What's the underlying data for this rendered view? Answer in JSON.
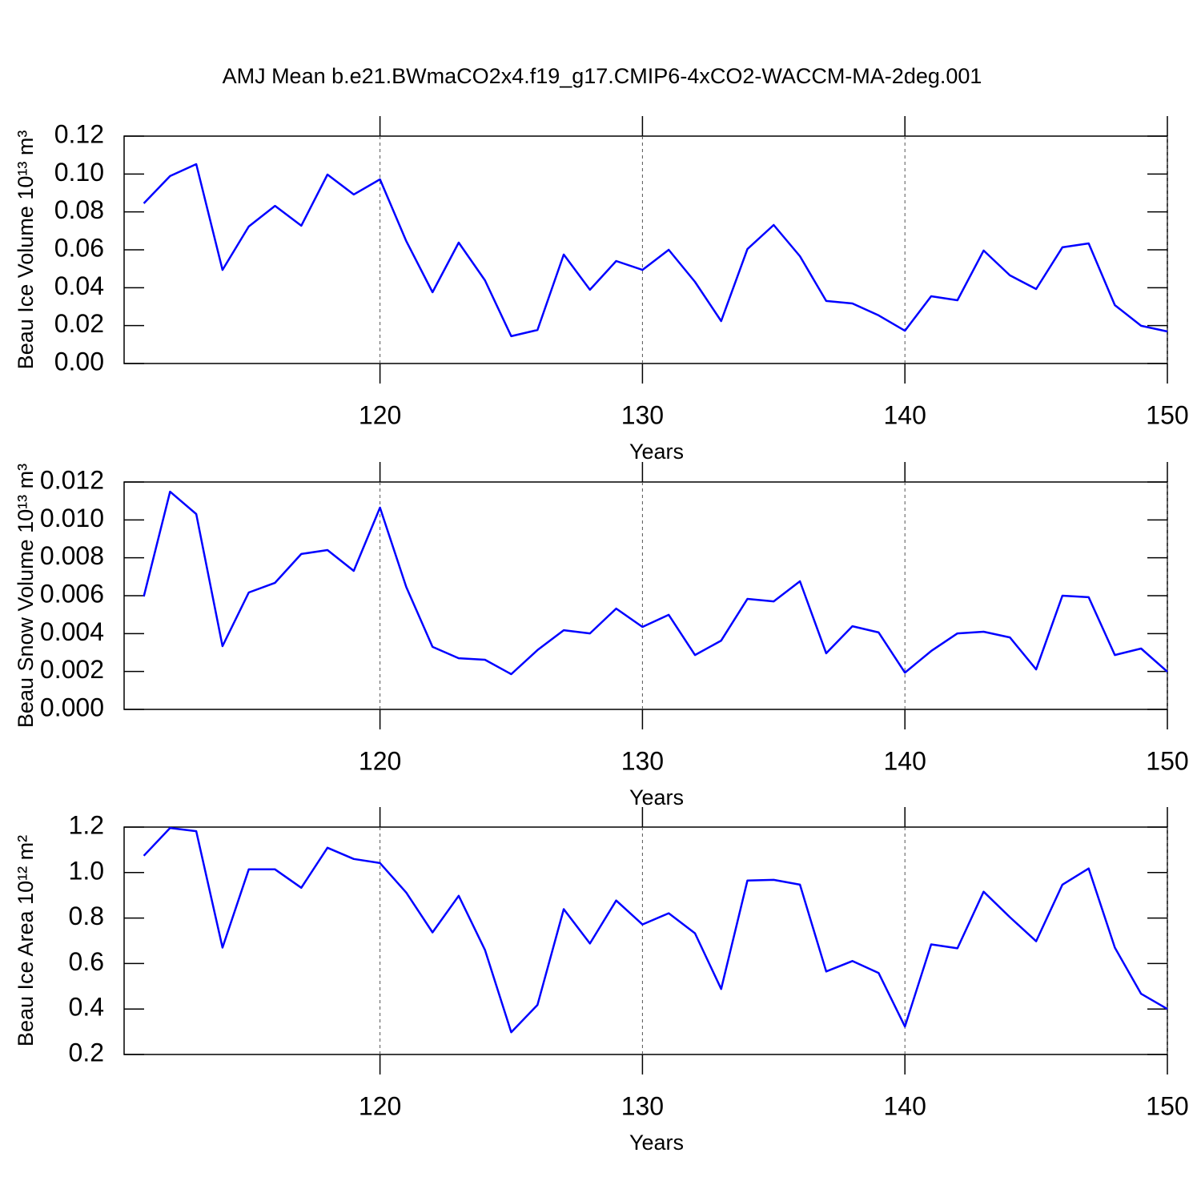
{
  "chart_data": [
    {
      "type": "line",
      "title": "AMJ Mean b.e21.BWmaCO2x4.f19_g17.CMIP6-4xCO2-WACCM-MA-2deg.001",
      "xlabel": "Years",
      "ylabel": "Beau Ice Volume 10¹³ m³",
      "color": "#0000ff",
      "grid": true,
      "xlim": [
        110.25,
        150
      ],
      "xticks": [
        120,
        130,
        140,
        150
      ],
      "ylim": [
        0,
        0.12
      ],
      "yticks": [
        {
          "value": 0,
          "label": "0.00"
        },
        0.02,
        0.04,
        0.06,
        0.08,
        {
          "value": 0.1,
          "label": "0.10"
        },
        0.12
      ],
      "x": [
        111,
        112,
        113,
        114,
        115,
        116,
        117,
        118,
        119,
        120,
        121,
        122,
        123,
        124,
        125,
        126,
        127,
        128,
        129,
        130,
        131,
        132,
        133,
        134,
        135,
        136,
        137,
        138,
        139,
        140,
        141,
        142,
        143,
        144,
        145,
        146,
        147,
        148,
        149,
        150
      ],
      "values": [
        0.0845,
        0.0989,
        0.1052,
        0.0494,
        0.0723,
        0.0832,
        0.0727,
        0.0997,
        0.0892,
        0.0972,
        0.0646,
        0.0376,
        0.0638,
        0.0439,
        0.0144,
        0.0177,
        0.0575,
        0.0389,
        0.0541,
        0.0494,
        0.06,
        0.0431,
        0.0224,
        0.0604,
        0.0731,
        0.0566,
        0.033,
        0.0317,
        0.0254,
        0.0173,
        0.0355,
        0.0334,
        0.0596,
        0.0465,
        0.0393,
        0.0613,
        0.0634,
        0.0308,
        0.0199,
        0.0169
      ]
    },
    {
      "type": "line",
      "xlabel": "Years",
      "ylabel": "Beau Snow Volume 10¹³ m³",
      "color": "#0000ff",
      "grid": true,
      "xlim": [
        110.25,
        150
      ],
      "xticks": [
        120,
        130,
        140,
        150
      ],
      "ylim": [
        0,
        0.012
      ],
      "yticks": [
        {
          "value": 0,
          "label": "0.000"
        },
        0.002,
        0.004,
        0.006,
        0.008,
        {
          "value": 0.01,
          "label": "0.010"
        },
        0.012
      ],
      "x": [
        111,
        112,
        113,
        114,
        115,
        116,
        117,
        118,
        119,
        120,
        121,
        122,
        123,
        124,
        125,
        126,
        127,
        128,
        129,
        130,
        131,
        132,
        133,
        134,
        135,
        136,
        137,
        138,
        139,
        140,
        141,
        142,
        143,
        144,
        145,
        146,
        147,
        148,
        149,
        150
      ],
      "values": [
        0.00596,
        0.01149,
        0.01031,
        0.00334,
        0.00617,
        0.00668,
        0.0082,
        0.00841,
        0.00731,
        0.01065,
        0.00646,
        0.0033,
        0.0027,
        0.00262,
        0.00186,
        0.00313,
        0.00418,
        0.00401,
        0.00532,
        0.00435,
        0.00499,
        0.00287,
        0.00363,
        0.00583,
        0.0057,
        0.00676,
        0.00296,
        0.00439,
        0.00406,
        0.00194,
        0.00308,
        0.00401,
        0.0041,
        0.0038,
        0.00211,
        0.006,
        0.00592,
        0.00287,
        0.00321,
        0.00199
      ]
    },
    {
      "type": "line",
      "xlabel": "Years",
      "ylabel": "Beau Ice Area 10¹² m²",
      "color": "#0000ff",
      "grid": true,
      "xlim": [
        110.25,
        150
      ],
      "xticks": [
        120,
        130,
        140,
        150
      ],
      "ylim": [
        0.2,
        1.2
      ],
      "yticks": [
        0.2,
        0.4,
        0.6,
        0.8,
        {
          "value": 1,
          "label": "1.0"
        },
        1.2
      ],
      "x": [
        111,
        112,
        113,
        114,
        115,
        116,
        117,
        118,
        119,
        120,
        121,
        122,
        123,
        124,
        125,
        126,
        127,
        128,
        129,
        130,
        131,
        132,
        133,
        134,
        135,
        136,
        137,
        138,
        139,
        140,
        141,
        142,
        143,
        144,
        145,
        146,
        147,
        148,
        149,
        150
      ],
      "values": [
        1.074,
        1.196,
        1.182,
        0.67,
        1.014,
        1.014,
        0.933,
        1.109,
        1.06,
        1.042,
        0.912,
        0.737,
        0.898,
        0.66,
        0.298,
        0.418,
        0.839,
        0.688,
        0.877,
        0.772,
        0.821,
        0.733,
        0.488,
        0.965,
        0.968,
        0.947,
        0.565,
        0.611,
        0.558,
        0.323,
        0.684,
        0.667,
        0.916,
        0.804,
        0.698,
        0.947,
        1.018,
        0.67,
        0.467,
        0.4
      ]
    }
  ]
}
